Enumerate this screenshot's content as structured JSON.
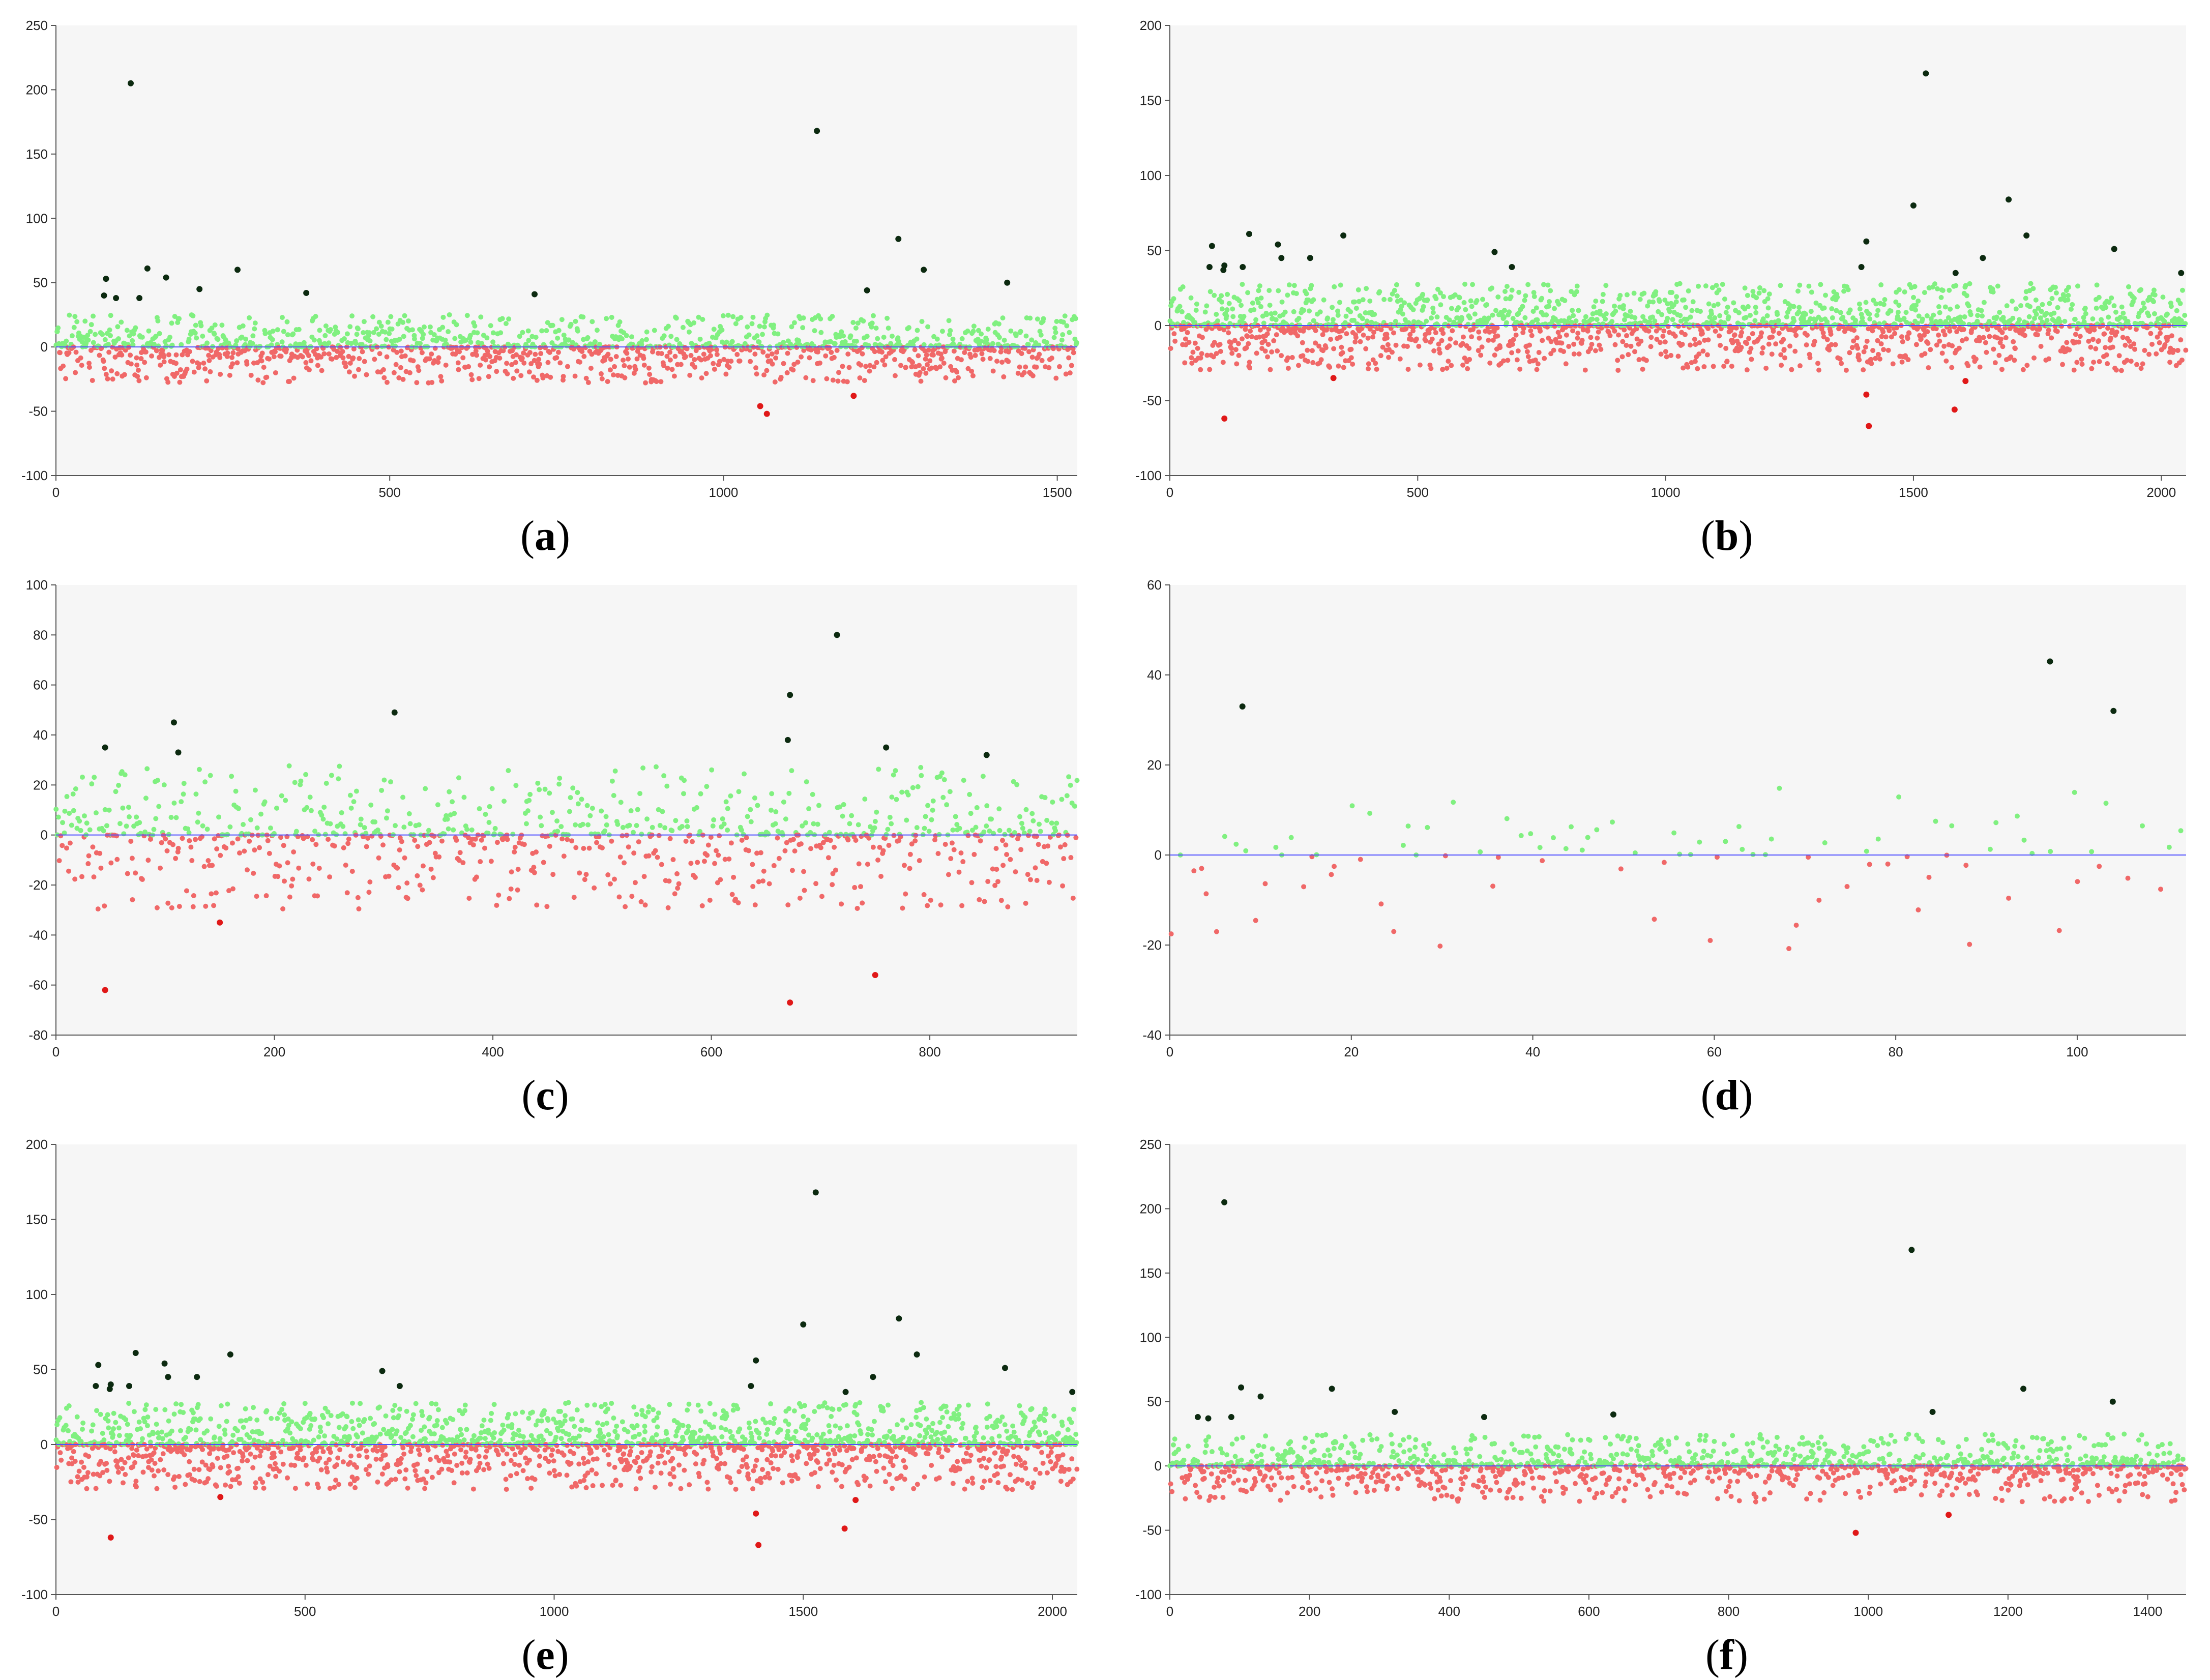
{
  "colors": {
    "background_band": "#f6f6f6",
    "positive": "#80f080",
    "negative": "#f06868",
    "outlier_high": "#0c2a10",
    "outlier_low": "#e01818",
    "baseline": "#5050ff",
    "axis": "#555555"
  },
  "chart_data": [
    {
      "id": "a",
      "caption_letter": "a",
      "type": "scatter",
      "xlim": [
        0,
        1530
      ],
      "ylim": [
        -100,
        250
      ],
      "xticks": [
        0,
        500,
        1000,
        1500
      ],
      "yticks": [
        -100,
        -50,
        0,
        50,
        100,
        150,
        200,
        250
      ],
      "n_points": 1530,
      "seed": 11,
      "pos_range": [
        0,
        25
      ],
      "neg_range": [
        -28,
        0
      ],
      "baseline": 0,
      "outliers_high": [
        [
          75,
          53
        ],
        [
          72,
          40
        ],
        [
          90,
          38
        ],
        [
          112,
          205
        ],
        [
          125,
          38
        ],
        [
          137,
          61
        ],
        [
          165,
          54
        ],
        [
          215,
          45
        ],
        [
          272,
          60
        ],
        [
          375,
          42
        ],
        [
          717,
          41
        ],
        [
          1140,
          168
        ],
        [
          1215,
          44
        ],
        [
          1262,
          84
        ],
        [
          1300,
          60
        ],
        [
          1425,
          50
        ]
      ],
      "outliers_low": [
        [
          1055,
          -46
        ],
        [
          1065,
          -52
        ],
        [
          1195,
          -38
        ]
      ]
    },
    {
      "id": "b",
      "caption_letter": "b",
      "type": "scatter",
      "xlim": [
        0,
        2050
      ],
      "ylim": [
        -100,
        200
      ],
      "xticks": [
        0,
        500,
        1000,
        1500,
        2000
      ],
      "yticks": [
        -100,
        -50,
        0,
        50,
        100,
        150,
        200
      ],
      "n_points": 2050,
      "seed": 23,
      "pos_range": [
        0,
        28
      ],
      "neg_range": [
        -30,
        0
      ],
      "baseline": 0,
      "outliers_high": [
        [
          85,
          53
        ],
        [
          80,
          39
        ],
        [
          108,
          37
        ],
        [
          110,
          40
        ],
        [
          147,
          39
        ],
        [
          160,
          61
        ],
        [
          218,
          54
        ],
        [
          225,
          45
        ],
        [
          283,
          45
        ],
        [
          350,
          60
        ],
        [
          655,
          49
        ],
        [
          690,
          39
        ],
        [
          1395,
          39
        ],
        [
          1405,
          56
        ],
        [
          1500,
          80
        ],
        [
          1525,
          168
        ],
        [
          1585,
          35
        ],
        [
          1640,
          45
        ],
        [
          1692,
          84
        ],
        [
          1728,
          60
        ],
        [
          1905,
          51
        ],
        [
          2040,
          35
        ]
      ],
      "outliers_low": [
        [
          110,
          -62
        ],
        [
          330,
          -35
        ],
        [
          1405,
          -46
        ],
        [
          1410,
          -67
        ],
        [
          1583,
          -56
        ],
        [
          1605,
          -37
        ]
      ]
    },
    {
      "id": "c",
      "caption_letter": "c",
      "type": "scatter",
      "xlim": [
        0,
        935
      ],
      "ylim": [
        -80,
        100
      ],
      "xticks": [
        0,
        200,
        400,
        600,
        800
      ],
      "yticks": [
        -80,
        -60,
        -40,
        -20,
        0,
        20,
        40,
        60,
        80,
        100
      ],
      "n_points": 935,
      "seed": 37,
      "pos_range": [
        0,
        28
      ],
      "neg_range": [
        -30,
        0
      ],
      "baseline": 0,
      "outliers_high": [
        [
          45,
          35
        ],
        [
          108,
          45
        ],
        [
          112,
          33
        ],
        [
          310,
          49
        ],
        [
          670,
          38
        ],
        [
          672,
          56
        ],
        [
          715,
          80
        ],
        [
          760,
          35
        ],
        [
          852,
          32
        ]
      ],
      "outliers_low": [
        [
          45,
          -62
        ],
        [
          150,
          -35
        ],
        [
          672,
          -67
        ],
        [
          750,
          -56
        ]
      ]
    },
    {
      "id": "d",
      "caption_letter": "d",
      "type": "scatter",
      "xlim": [
        0,
        112
      ],
      "ylim": [
        -40,
        60
      ],
      "xticks": [
        0,
        20,
        40,
        60,
        80,
        100
      ],
      "yticks": [
        -40,
        -20,
        0,
        20,
        40,
        60
      ],
      "n_points": 112,
      "seed": 41,
      "pos_range": [
        0,
        15
      ],
      "neg_range": [
        -22,
        0
      ],
      "baseline": 0,
      "sparse": true,
      "outliers_high": [
        [
          8,
          33
        ],
        [
          97,
          43
        ],
        [
          104,
          32
        ]
      ],
      "outliers_low": []
    },
    {
      "id": "e",
      "caption_letter": "e",
      "type": "scatter",
      "xlim": [
        0,
        2050
      ],
      "ylim": [
        -100,
        200
      ],
      "xticks": [
        0,
        500,
        1000,
        1500,
        2000
      ],
      "yticks": [
        -100,
        -50,
        0,
        50,
        100,
        150,
        200
      ],
      "n_points": 2050,
      "seed": 23,
      "pos_range": [
        0,
        28
      ],
      "neg_range": [
        -30,
        0
      ],
      "baseline": 0,
      "outliers_high": [
        [
          85,
          53
        ],
        [
          80,
          39
        ],
        [
          108,
          37
        ],
        [
          110,
          40
        ],
        [
          147,
          39
        ],
        [
          160,
          61
        ],
        [
          218,
          54
        ],
        [
          225,
          45
        ],
        [
          283,
          45
        ],
        [
          350,
          60
        ],
        [
          655,
          49
        ],
        [
          690,
          39
        ],
        [
          1395,
          39
        ],
        [
          1405,
          56
        ],
        [
          1500,
          80
        ],
        [
          1525,
          168
        ],
        [
          1585,
          35
        ],
        [
          1640,
          45
        ],
        [
          1692,
          84
        ],
        [
          1728,
          60
        ],
        [
          1905,
          51
        ],
        [
          2040,
          35
        ]
      ],
      "outliers_low": [
        [
          110,
          -62
        ],
        [
          330,
          -35
        ],
        [
          1405,
          -46
        ],
        [
          1410,
          -67
        ],
        [
          1583,
          -56
        ],
        [
          1605,
          -37
        ]
      ]
    },
    {
      "id": "f",
      "caption_letter": "f",
      "type": "scatter",
      "xlim": [
        0,
        1455
      ],
      "ylim": [
        -100,
        250
      ],
      "xticks": [
        0,
        200,
        400,
        600,
        800,
        1000,
        1200,
        1400
      ],
      "yticks": [
        -100,
        -50,
        0,
        50,
        100,
        150,
        200,
        250
      ],
      "n_points": 1455,
      "seed": 53,
      "pos_range": [
        0,
        25
      ],
      "neg_range": [
        -28,
        0
      ],
      "baseline": 0,
      "outliers_high": [
        [
          40,
          38
        ],
        [
          55,
          37
        ],
        [
          78,
          205
        ],
        [
          88,
          38
        ],
        [
          102,
          61
        ],
        [
          130,
          54
        ],
        [
          232,
          60
        ],
        [
          322,
          42
        ],
        [
          450,
          38
        ],
        [
          635,
          40
        ],
        [
          1062,
          168
        ],
        [
          1092,
          42
        ],
        [
          1222,
          60
        ],
        [
          1350,
          50
        ]
      ],
      "outliers_low": [
        [
          982,
          -52
        ],
        [
          1115,
          -38
        ]
      ]
    }
  ]
}
